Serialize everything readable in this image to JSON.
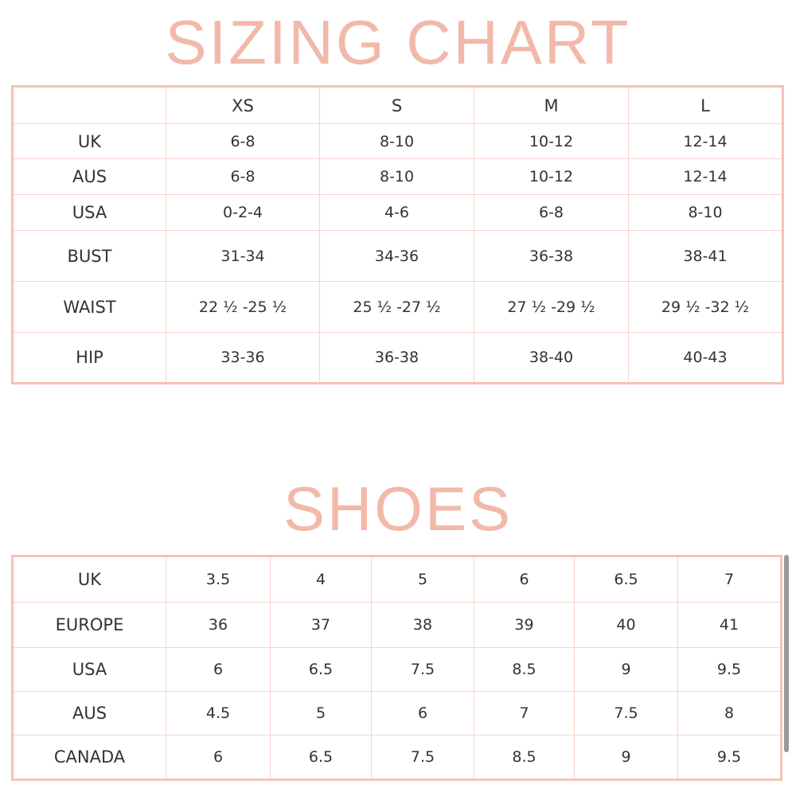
{
  "sizing": {
    "title": "SIZING CHART",
    "headers": [
      "",
      "XS",
      "S",
      "M",
      "L"
    ],
    "rows": [
      {
        "label": "UK",
        "values": [
          "6-8",
          "8-10",
          "10-12",
          "12-14"
        ]
      },
      {
        "label": "AUS",
        "values": [
          "6-8",
          "8-10",
          "10-12",
          "12-14"
        ]
      },
      {
        "label": "USA",
        "values": [
          "0-2-4",
          "4-6",
          "6-8",
          "8-10"
        ]
      },
      {
        "label": "BUST",
        "values": [
          "31-34",
          "34-36",
          "36-38",
          "38-41"
        ]
      },
      {
        "label": "WAIST",
        "values": [
          "22 ½ -25 ½",
          "25 ½ -27 ½",
          "27 ½ -29 ½",
          "29 ½ -32 ½"
        ]
      },
      {
        "label": "HIP",
        "values": [
          "33-36",
          "36-38",
          "38-40",
          "40-43"
        ]
      }
    ]
  },
  "shoes": {
    "title": "SHOES",
    "rows": [
      {
        "label": "UK",
        "values": [
          "3.5",
          "4",
          "5",
          "6",
          "6.5",
          "7"
        ]
      },
      {
        "label": "EUROPE",
        "values": [
          "36",
          "37",
          "38",
          "39",
          "40",
          "41"
        ]
      },
      {
        "label": "USA",
        "values": [
          "6",
          "6.5",
          "7.5",
          "8.5",
          "9",
          "9.5"
        ]
      },
      {
        "label": "AUS",
        "values": [
          "4.5",
          "5",
          "6",
          "7",
          "7.5",
          "8"
        ]
      },
      {
        "label": "CANADA",
        "values": [
          "6",
          "6.5",
          "7.5",
          "8.5",
          "9",
          "9.5"
        ]
      }
    ]
  },
  "colors": {
    "accent": "#f2b9aa",
    "border": "#f6c2b7",
    "text": "#333333"
  }
}
